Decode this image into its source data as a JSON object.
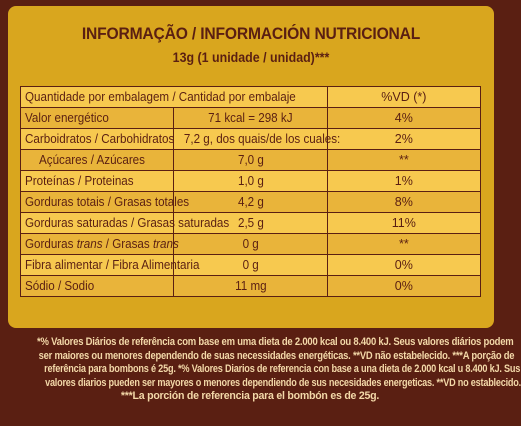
{
  "header": {
    "title": "INFORMAÇÃO / INFORMACIÓN NUTRICIONAL",
    "serving": "13g (1 unidade / unidad)***"
  },
  "table": {
    "header_row": {
      "label": "Quantidade por embalagem / Cantidad por embalaje",
      "dv": "%VD (*)"
    },
    "rows": [
      {
        "label": "Valor energético",
        "label_trans": "",
        "amount": "71 kcal = 298 kJ",
        "dv": "4%",
        "indent": false
      },
      {
        "label": "Carboidratos / Carbohidratos",
        "label_trans": "",
        "amount": "7,2 g, dos quais/de los cuales:",
        "dv": "2%",
        "indent": false
      },
      {
        "label": "Açúcares / Azúcares",
        "label_trans": "",
        "amount": "7,0 g",
        "dv": "**",
        "indent": true
      },
      {
        "label": "Proteínas / Proteinas",
        "label_trans": "",
        "amount": "1,0 g",
        "dv": "1%",
        "indent": false
      },
      {
        "label": "Gorduras totais / Grasas totales",
        "label_trans": "",
        "amount": "4,2 g",
        "dv": "8%",
        "indent": false
      },
      {
        "label": "Gorduras saturadas / Grasas saturadas",
        "label_trans": "",
        "amount": "2,5 g",
        "dv": "11%",
        "indent": false
      },
      {
        "label_pre": "Gorduras ",
        "label_it1": "trans",
        "label_mid": " / Grasas ",
        "label_it2": "trans",
        "amount": "0 g",
        "dv": "**",
        "indent": false
      },
      {
        "label": "Fibra alimentar / Fibra Alimentaria",
        "label_trans": "",
        "amount": "0 g",
        "dv": "0%",
        "indent": false
      },
      {
        "label": "Sódio / Sodio",
        "label_trans": "",
        "amount": "11 mg",
        "dv": "0%",
        "indent": false
      }
    ]
  },
  "footnote": {
    "lines": [
      "*% Valores Diários de referência com base em uma dieta de 2.000 kcal ou 8.400 kJ. Seus valores diários podem",
      "ser maiores ou menores dependendo de suas necessidades energéticas. **VD não estabelecido. ***A porção de",
      "referência para bombons é 25g. *% Valores Diarios de referencia con base a una dieta de 2.000 kcal u 8.400 kJ. Sus",
      "valores diarios pueden ser mayores o menores dependiendo de sus necesidades energeticas. **VD no establecido.",
      "***La porción de referencia para el bombón es de 25g."
    ]
  },
  "colors": {
    "panel": "#d9a61e",
    "row_light": "#f7c94f",
    "row_dark": "#e9b43a",
    "brown": "#5a1f12",
    "footnote_text": "#f3d8a8"
  }
}
